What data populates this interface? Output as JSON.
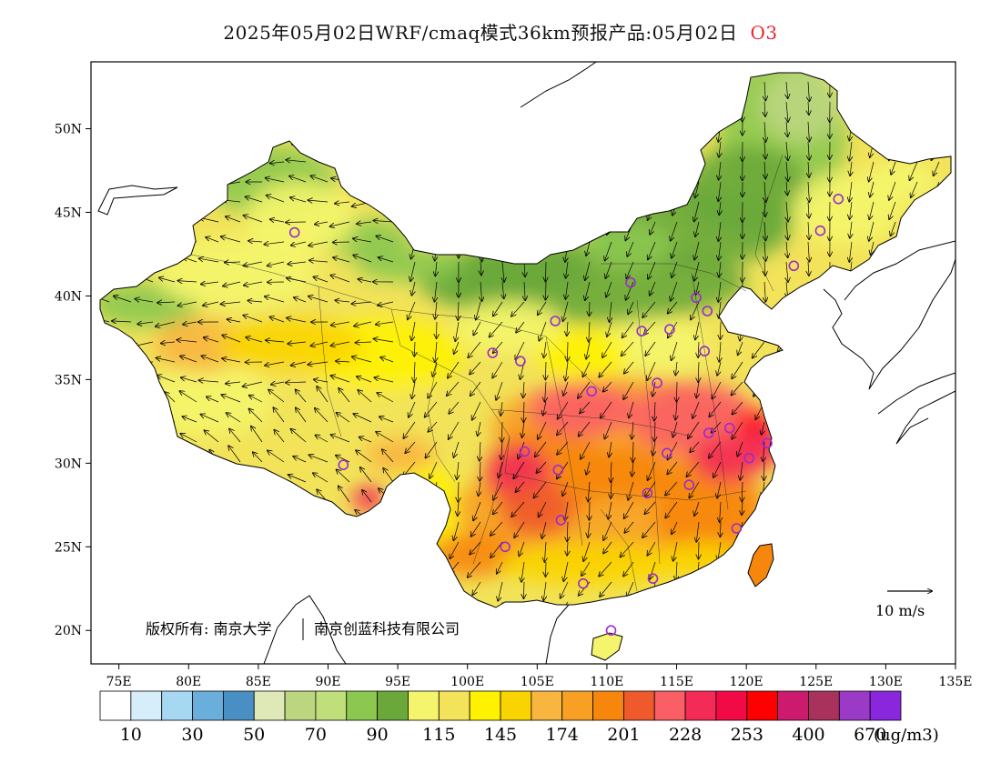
{
  "title": {
    "main": "2025年05月02日WRF/cmaq模式36km预报产品:05月02日",
    "pollutant": "O3"
  },
  "map": {
    "lon_range": [
      73,
      135
    ],
    "lat_range": [
      18,
      54
    ],
    "lon_ticks": [
      "75E",
      "80E",
      "85E",
      "90E",
      "95E",
      "100E",
      "105E",
      "110E",
      "115E",
      "120E",
      "125E",
      "130E",
      "135E"
    ],
    "lat_ticks": [
      "20N",
      "25N",
      "30N",
      "35N",
      "40N",
      "45N",
      "50N"
    ],
    "lon_tick_values": [
      75,
      80,
      85,
      90,
      95,
      100,
      105,
      110,
      115,
      120,
      125,
      130,
      135
    ],
    "lat_tick_values": [
      20,
      25,
      30,
      35,
      40,
      45,
      50
    ],
    "copyright": "版权所有: 南京大学",
    "copyright2": "南京创蓝科技有限公司",
    "wind_scale_label": "10 m/s"
  },
  "colorbar": {
    "colors": [
      "#ffffff",
      "#d6eefa",
      "#a6d8f2",
      "#6aaedc",
      "#4a8fc4",
      "#dfe9b8",
      "#bcd680",
      "#c0df7a",
      "#8cc850",
      "#6aa83a",
      "#f4f56c",
      "#f2e35a",
      "#fef200",
      "#fad400",
      "#f8b540",
      "#f7a023",
      "#f7860c",
      "#ef5a2c",
      "#fb5f66",
      "#f32b56",
      "#f20a47",
      "#fe0000",
      "#cc1a6e",
      "#a8325c",
      "#9c3ac8",
      "#8a26dc"
    ],
    "labels": [
      "10",
      "30",
      "50",
      "70",
      "90",
      "115",
      "145",
      "174",
      "201",
      "228",
      "253",
      "400",
      "670"
    ],
    "unit": "(ug/m3)"
  },
  "stations": [
    {
      "lon": 87.6,
      "lat": 43.8
    },
    {
      "lon": 91.1,
      "lat": 29.9
    },
    {
      "lon": 101.8,
      "lat": 36.6
    },
    {
      "lon": 103.8,
      "lat": 36.1
    },
    {
      "lon": 106.3,
      "lat": 38.5
    },
    {
      "lon": 111.7,
      "lat": 40.8
    },
    {
      "lon": 112.5,
      "lat": 37.9
    },
    {
      "lon": 114.5,
      "lat": 38.0
    },
    {
      "lon": 116.4,
      "lat": 39.9
    },
    {
      "lon": 117.2,
      "lat": 39.1
    },
    {
      "lon": 117.0,
      "lat": 36.7
    },
    {
      "lon": 113.6,
      "lat": 34.8
    },
    {
      "lon": 108.9,
      "lat": 34.3
    },
    {
      "lon": 104.1,
      "lat": 30.7
    },
    {
      "lon": 106.5,
      "lat": 29.6
    },
    {
      "lon": 114.3,
      "lat": 30.6
    },
    {
      "lon": 117.3,
      "lat": 31.8
    },
    {
      "lon": 118.8,
      "lat": 32.1
    },
    {
      "lon": 120.2,
      "lat": 30.3
    },
    {
      "lon": 121.5,
      "lat": 31.2
    },
    {
      "lon": 115.9,
      "lat": 28.7
    },
    {
      "lon": 112.9,
      "lat": 28.2
    },
    {
      "lon": 106.7,
      "lat": 26.6
    },
    {
      "lon": 102.7,
      "lat": 25.0
    },
    {
      "lon": 119.3,
      "lat": 26.1
    },
    {
      "lon": 113.3,
      "lat": 23.1
    },
    {
      "lon": 108.3,
      "lat": 22.8
    },
    {
      "lon": 110.3,
      "lat": 20.0
    },
    {
      "lon": 123.4,
      "lat": 41.8
    },
    {
      "lon": 125.3,
      "lat": 43.9
    },
    {
      "lon": 126.6,
      "lat": 45.8
    }
  ]
}
